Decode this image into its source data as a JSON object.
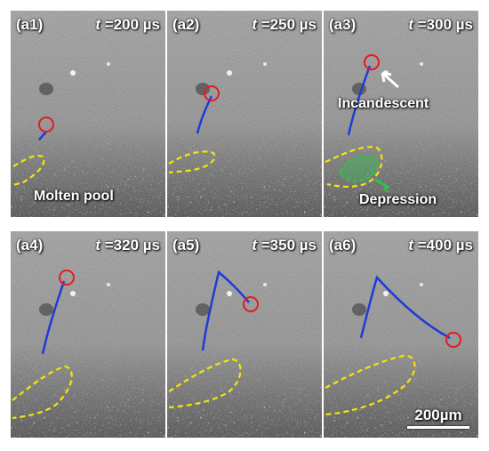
{
  "colors": {
    "trajectory": "#1f3bd6",
    "particle_marker": "#e31b23",
    "pool_outline": "#f5e50a",
    "depression_fill": "#2ec24a"
  },
  "panels": [
    {
      "label": "(a1)",
      "time_var": "t",
      "time_value": "=200 µs"
    },
    {
      "label": "(a2)",
      "time_var": "t",
      "time_value": "=250 µs"
    },
    {
      "label": "(a3)",
      "time_var": "t",
      "time_value": "=300 µs"
    },
    {
      "label": "(a4)",
      "time_var": "t",
      "time_value": "=320 µs"
    },
    {
      "label": "(a5)",
      "time_var": "t",
      "time_value": "=350 µs"
    },
    {
      "label": "(a6)",
      "time_var": "t",
      "time_value": "=400 µs"
    }
  ],
  "annotations": {
    "molten_pool": "Molten pool",
    "incandescent": "Incandescent",
    "depression": "Depression"
  },
  "scale_bar": {
    "label": "200µm"
  }
}
